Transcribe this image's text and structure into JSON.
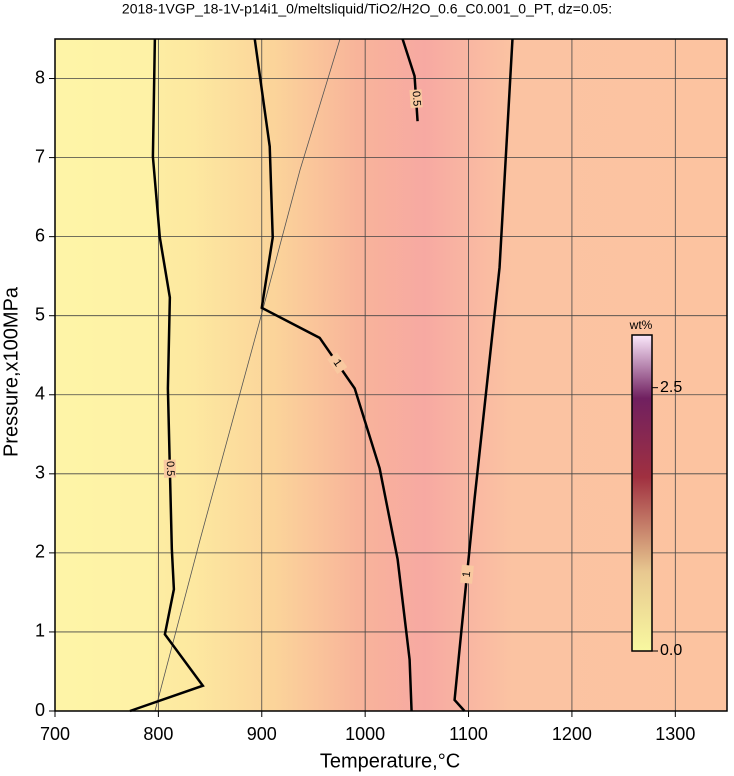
{
  "chart_data": {
    "type": "contour",
    "title": "2018-1VGP_18-1V-p14i1_0/meltsliquid/TiO2/H2O_0.6_C0.001_0_PT, dz=0.05:",
    "x_label": "Temperature,°C",
    "y_label": "Pressure,x100MPa",
    "xlim": [
      700,
      1350
    ],
    "ylim": [
      0,
      8.5
    ],
    "xticks": [
      700,
      800,
      900,
      1000,
      1100,
      1200,
      1300
    ],
    "yticks": [
      0,
      1,
      2,
      3,
      4,
      5,
      6,
      7,
      8
    ],
    "grid": true,
    "contours": [
      {
        "level": 0.5,
        "color": "#000000",
        "x": [
          796.6,
          794.7,
          801.4,
          811.1,
          809.2,
          813.0,
          815.0,
          806.3,
          843.0,
          772.5
        ],
        "y": [
          8.5,
          7.01,
          5.99,
          5.23,
          4.08,
          2.05,
          1.54,
          0.97,
          0.32,
          0
        ]
      },
      {
        "level": 1,
        "color": "#000000",
        "x": [
          893.2,
          907.7,
          910.6,
          900.0,
          956.0,
          989.9,
          1014.0,
          1031.4,
          1043.0,
          1044.9
        ],
        "y": [
          8.5,
          7.14,
          5.99,
          5.1,
          4.72,
          4.08,
          3.07,
          1.92,
          0.65,
          0
        ]
      },
      {
        "level": 0.5,
        "color": "#000000",
        "x": [
          1036.2,
          1047.8,
          1050.7
        ],
        "y": [
          8.5,
          8.03,
          7.46
        ]
      },
      {
        "level": 1,
        "color": "#000000",
        "x": [
          1142.5,
          1130.0,
          1105.8,
          1091.3,
          1086.5,
          1096.1
        ],
        "y": [
          8.5,
          5.61,
          2.68,
          0.78,
          0.14,
          0
        ]
      }
    ],
    "colorbar": {
      "label": "wt%",
      "lim": [
        0,
        3
      ],
      "ticks": [
        {
          "value": 0,
          "label": "0.0"
        },
        2.5
      ]
    }
  }
}
